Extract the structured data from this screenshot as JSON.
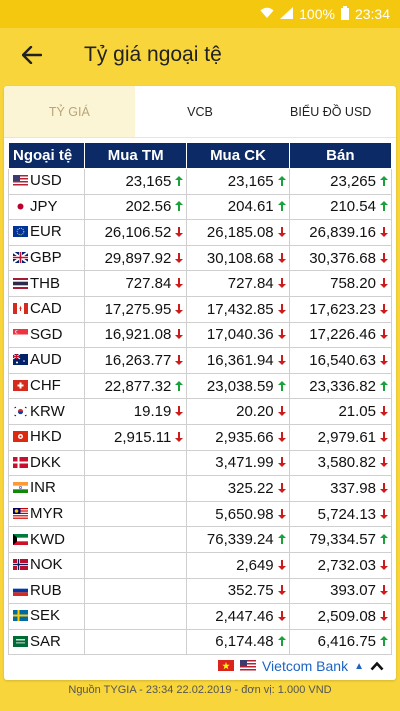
{
  "status": {
    "battery": "100%",
    "time": "23:34"
  },
  "appbar": {
    "title": "Tỷ giá ngoại tệ"
  },
  "tabs": [
    {
      "label": "TỶ GIÁ",
      "active": true
    },
    {
      "label": "VCB",
      "active": false
    },
    {
      "label": "BIỂU ĐỒ USD",
      "active": false
    }
  ],
  "table": {
    "headers": [
      "Ngoại tệ",
      "Mua TM",
      "Mua CK",
      "Bán"
    ],
    "rows": [
      {
        "code": "USD",
        "flag": "us",
        "mua_tm": "23,165",
        "tm_dir": "up",
        "mua_ck": "23,165",
        "ck_dir": "up",
        "ban": "23,265",
        "ban_dir": "up"
      },
      {
        "code": "JPY",
        "flag": "jp",
        "mua_tm": "202.56",
        "tm_dir": "up",
        "mua_ck": "204.61",
        "ck_dir": "up",
        "ban": "210.54",
        "ban_dir": "up"
      },
      {
        "code": "EUR",
        "flag": "eu",
        "mua_tm": "26,106.52",
        "tm_dir": "down",
        "mua_ck": "26,185.08",
        "ck_dir": "down",
        "ban": "26,839.16",
        "ban_dir": "down"
      },
      {
        "code": "GBP",
        "flag": "gb",
        "mua_tm": "29,897.92",
        "tm_dir": "down",
        "mua_ck": "30,108.68",
        "ck_dir": "down",
        "ban": "30,376.68",
        "ban_dir": "down"
      },
      {
        "code": "THB",
        "flag": "th",
        "mua_tm": "727.84",
        "tm_dir": "down",
        "mua_ck": "727.84",
        "ck_dir": "down",
        "ban": "758.20",
        "ban_dir": "down"
      },
      {
        "code": "CAD",
        "flag": "ca",
        "mua_tm": "17,275.95",
        "tm_dir": "down",
        "mua_ck": "17,432.85",
        "ck_dir": "down",
        "ban": "17,623.23",
        "ban_dir": "down"
      },
      {
        "code": "SGD",
        "flag": "sg",
        "mua_tm": "16,921.08",
        "tm_dir": "down",
        "mua_ck": "17,040.36",
        "ck_dir": "down",
        "ban": "17,226.46",
        "ban_dir": "down"
      },
      {
        "code": "AUD",
        "flag": "au",
        "mua_tm": "16,263.77",
        "tm_dir": "down",
        "mua_ck": "16,361.94",
        "ck_dir": "down",
        "ban": "16,540.63",
        "ban_dir": "down"
      },
      {
        "code": "CHF",
        "flag": "ch",
        "mua_tm": "22,877.32",
        "tm_dir": "up",
        "mua_ck": "23,038.59",
        "ck_dir": "up",
        "ban": "23,336.82",
        "ban_dir": "up"
      },
      {
        "code": "KRW",
        "flag": "kr",
        "mua_tm": "19.19",
        "tm_dir": "down",
        "mua_ck": "20.20",
        "ck_dir": "down",
        "ban": "21.05",
        "ban_dir": "down"
      },
      {
        "code": "HKD",
        "flag": "hk",
        "mua_tm": "2,915.11",
        "tm_dir": "down",
        "mua_ck": "2,935.66",
        "ck_dir": "down",
        "ban": "2,979.61",
        "ban_dir": "down"
      },
      {
        "code": "DKK",
        "flag": "dk",
        "mua_tm": "",
        "tm_dir": "",
        "mua_ck": "3,471.99",
        "ck_dir": "down",
        "ban": "3,580.82",
        "ban_dir": "down"
      },
      {
        "code": "INR",
        "flag": "in",
        "mua_tm": "",
        "tm_dir": "",
        "mua_ck": "325.22",
        "ck_dir": "down",
        "ban": "337.98",
        "ban_dir": "down"
      },
      {
        "code": "MYR",
        "flag": "my",
        "mua_tm": "",
        "tm_dir": "",
        "mua_ck": "5,650.98",
        "ck_dir": "down",
        "ban": "5,724.13",
        "ban_dir": "down"
      },
      {
        "code": "KWD",
        "flag": "kw",
        "mua_tm": "",
        "tm_dir": "",
        "mua_ck": "76,339.24",
        "ck_dir": "up",
        "ban": "79,334.57",
        "ban_dir": "up"
      },
      {
        "code": "NOK",
        "flag": "no",
        "mua_tm": "",
        "tm_dir": "",
        "mua_ck": "2,649",
        "ck_dir": "down",
        "ban": "2,732.03",
        "ban_dir": "down"
      },
      {
        "code": "RUB",
        "flag": "ru",
        "mua_tm": "",
        "tm_dir": "",
        "mua_ck": "352.75",
        "ck_dir": "down",
        "ban": "393.07",
        "ban_dir": "down"
      },
      {
        "code": "SEK",
        "flag": "se",
        "mua_tm": "",
        "tm_dir": "",
        "mua_ck": "2,447.46",
        "ck_dir": "down",
        "ban": "2,509.08",
        "ban_dir": "down"
      },
      {
        "code": "SAR",
        "flag": "sa",
        "mua_tm": "",
        "tm_dir": "",
        "mua_ck": "6,174.48",
        "ck_dir": "up",
        "ban": "6,416.75",
        "ban_dir": "up"
      }
    ]
  },
  "footer": {
    "bank": "Vietcom Bank"
  },
  "source_note": "Nguồn TYGIA - 23:34 22.02.2019 - đơn vị: 1.000 VND",
  "colors": {
    "appbar": "#f8d53a",
    "header": "#0b2a66",
    "up": "#1aa23a",
    "down": "#cc1b1b"
  }
}
